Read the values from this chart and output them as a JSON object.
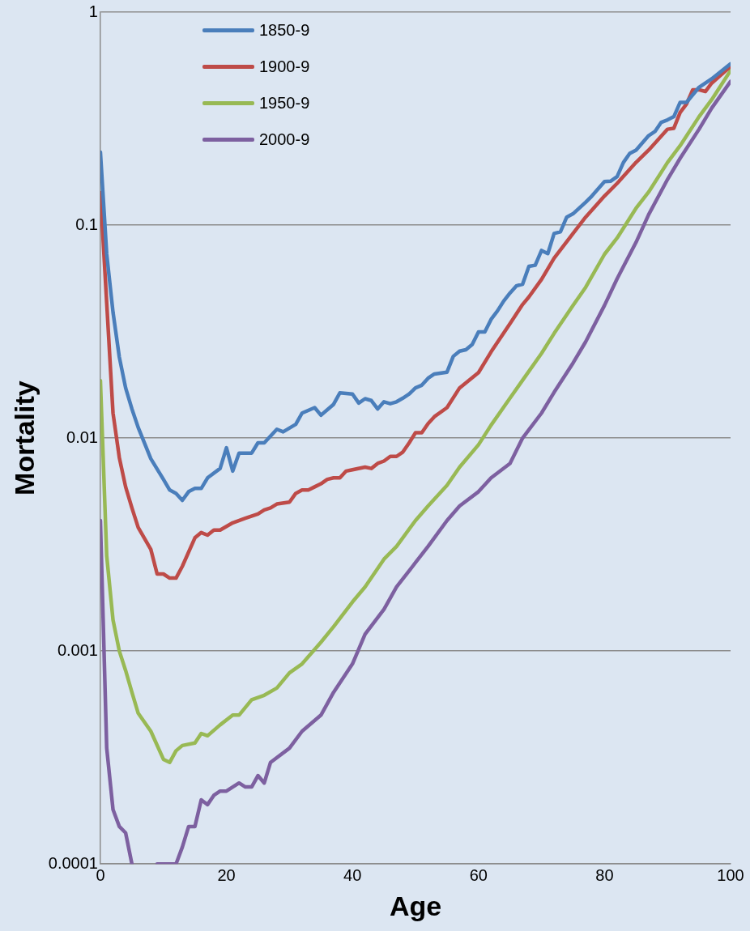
{
  "chart_data": {
    "type": "line",
    "xlabel": "Age",
    "ylabel": "Mortality",
    "log": "y",
    "grid": "y",
    "legend": "top left",
    "marker": "none",
    "line_style": "solid",
    "xlim": [
      0,
      100
    ],
    "xticks": [
      0,
      20,
      40,
      60,
      80,
      100
    ],
    "ylim": [
      0.0001,
      1
    ],
    "yticks": [
      0.0001,
      0.001,
      0.01,
      0.1,
      1
    ],
    "series": [
      {
        "name": "1850-9",
        "color": "#4a7ebb",
        "x": [
          0,
          1,
          2,
          3,
          4,
          5,
          6,
          8,
          10,
          11,
          12,
          13,
          14,
          15,
          16,
          17,
          19,
          20,
          21,
          22,
          24,
          25,
          26,
          28,
          29,
          31,
          32,
          34,
          35,
          37,
          38,
          40,
          41,
          42,
          43,
          44,
          45,
          46,
          47,
          48,
          49,
          50,
          51,
          52,
          53,
          55,
          56,
          57,
          58,
          59,
          60,
          61,
          62,
          63,
          64,
          65,
          66,
          67,
          68,
          69,
          70,
          71,
          72,
          73,
          74,
          75,
          77,
          78,
          80,
          81,
          82,
          83,
          84,
          85,
          87,
          88,
          89,
          90,
          91,
          92,
          93,
          95,
          97,
          100
        ],
        "values": [
          0.22,
          0.073,
          0.039,
          0.024,
          0.0172,
          0.0137,
          0.0112,
          0.008,
          0.0064,
          0.0057,
          0.0055,
          0.0051,
          0.0056,
          0.0058,
          0.0058,
          0.0065,
          0.0072,
          0.009,
          0.007,
          0.0085,
          0.0085,
          0.0095,
          0.0095,
          0.011,
          0.0107,
          0.0116,
          0.0131,
          0.0139,
          0.0128,
          0.0144,
          0.0163,
          0.0161,
          0.0146,
          0.0153,
          0.015,
          0.0137,
          0.0148,
          0.0145,
          0.0148,
          0.0154,
          0.0161,
          0.0172,
          0.0177,
          0.0191,
          0.02,
          0.0204,
          0.0242,
          0.0256,
          0.026,
          0.0275,
          0.0315,
          0.0315,
          0.0361,
          0.0395,
          0.044,
          0.048,
          0.0518,
          0.0528,
          0.064,
          0.0648,
          0.076,
          0.0735,
          0.0913,
          0.093,
          0.109,
          0.113,
          0.128,
          0.137,
          0.16,
          0.161,
          0.169,
          0.197,
          0.217,
          0.225,
          0.263,
          0.275,
          0.304,
          0.312,
          0.323,
          0.377,
          0.377,
          0.444,
          0.486,
          0.572
        ]
      },
      {
        "name": "1900-9",
        "color": "#be4b48",
        "x": [
          0,
          1,
          2,
          3,
          4,
          5,
          6,
          8,
          9,
          10,
          11,
          12,
          13,
          15,
          16,
          17,
          18,
          19,
          21,
          23,
          25,
          26,
          27,
          28,
          30,
          31,
          32,
          33,
          34,
          35,
          36,
          37,
          38,
          39,
          40,
          42,
          43,
          44,
          45,
          46,
          47,
          48,
          49,
          50,
          51,
          52,
          53,
          55,
          57,
          60,
          62,
          65,
          67,
          68,
          70,
          72,
          75,
          77,
          80,
          82,
          85,
          87,
          90,
          91,
          92,
          93,
          94,
          95,
          96,
          97,
          100
        ],
        "values": [
          0.142,
          0.043,
          0.0131,
          0.0081,
          0.0059,
          0.0047,
          0.0038,
          0.003,
          0.0023,
          0.0023,
          0.0022,
          0.0022,
          0.0025,
          0.0034,
          0.0036,
          0.0035,
          0.0037,
          0.0037,
          0.004,
          0.0042,
          0.0044,
          0.0046,
          0.0047,
          0.0049,
          0.005,
          0.0055,
          0.0057,
          0.0057,
          0.0059,
          0.0061,
          0.0064,
          0.0065,
          0.0065,
          0.007,
          0.0071,
          0.0073,
          0.0072,
          0.0076,
          0.0078,
          0.0082,
          0.0082,
          0.0086,
          0.0095,
          0.0106,
          0.0106,
          0.0117,
          0.0126,
          0.0139,
          0.0172,
          0.0203,
          0.0254,
          0.0345,
          0.0424,
          0.046,
          0.0556,
          0.07,
          0.0913,
          0.109,
          0.137,
          0.157,
          0.197,
          0.225,
          0.282,
          0.285,
          0.338,
          0.37,
          0.432,
          0.432,
          0.424,
          0.464,
          0.556
        ]
      },
      {
        "name": "1950-9",
        "color": "#98b954",
        "x": [
          0,
          1,
          2,
          3,
          4,
          5,
          6,
          8,
          10,
          11,
          12,
          13,
          15,
          16,
          17,
          19,
          21,
          22,
          24,
          26,
          28,
          30,
          32,
          35,
          37,
          40,
          42,
          45,
          47,
          50,
          52,
          55,
          57,
          60,
          62,
          65,
          67,
          70,
          72,
          75,
          77,
          80,
          82,
          85,
          87,
          90,
          92,
          95,
          97,
          100
        ],
        "values": [
          0.0186,
          0.0028,
          0.0014,
          0.001,
          0.00081,
          0.00064,
          0.00051,
          0.00042,
          0.00031,
          0.0003,
          0.00034,
          0.00036,
          0.00037,
          0.00041,
          0.0004,
          0.00045,
          0.0005,
          0.0005,
          0.00059,
          0.00062,
          0.00067,
          0.00079,
          0.00087,
          0.0011,
          0.0013,
          0.0017,
          0.002,
          0.0027,
          0.0031,
          0.0041,
          0.0048,
          0.006,
          0.0073,
          0.0093,
          0.0115,
          0.0154,
          0.0187,
          0.025,
          0.031,
          0.042,
          0.051,
          0.073,
          0.087,
          0.12,
          0.143,
          0.197,
          0.236,
          0.323,
          0.388,
          0.532
        ]
      },
      {
        "name": "2000-9",
        "color": "#7d60a0",
        "x": [
          0,
          1,
          2,
          3,
          4,
          5,
          6,
          7,
          8,
          9,
          10,
          11,
          12,
          13,
          14,
          15,
          16,
          17,
          18,
          19,
          20,
          21,
          22,
          23,
          24,
          25,
          26,
          27,
          30,
          32,
          35,
          37,
          40,
          42,
          45,
          47,
          50,
          52,
          55,
          57,
          60,
          62,
          65,
          67,
          70,
          72,
          75,
          77,
          80,
          82,
          85,
          87,
          90,
          92,
          95,
          97,
          100
        ],
        "values": [
          0.0041,
          0.00035,
          0.00018,
          0.00015,
          0.00014,
          0.0001,
          null,
          null,
          null,
          0.0001,
          0.0001,
          0.0001,
          0.0001,
          0.00012,
          0.00015,
          0.00015,
          0.0002,
          0.00019,
          0.00021,
          0.00022,
          0.00022,
          0.00023,
          0.00024,
          0.00023,
          0.00023,
          0.00026,
          0.00024,
          0.0003,
          0.00035,
          0.00042,
          0.0005,
          0.00064,
          0.00087,
          0.0012,
          0.00157,
          0.002,
          0.0026,
          0.0031,
          0.0041,
          0.0048,
          0.0056,
          0.0065,
          0.0076,
          0.01,
          0.0131,
          0.0164,
          0.0225,
          0.0283,
          0.042,
          0.056,
          0.083,
          0.112,
          0.164,
          0.206,
          0.282,
          0.354,
          0.473
        ]
      }
    ]
  }
}
